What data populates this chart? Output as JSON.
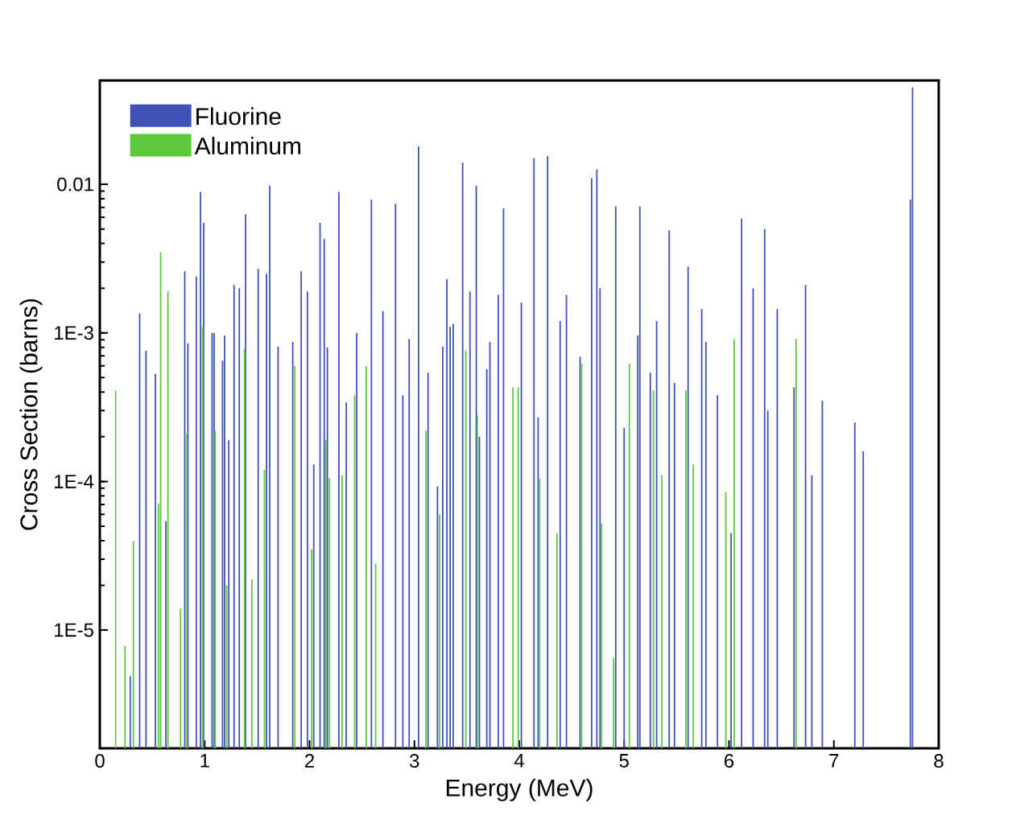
{
  "chart_data": {
    "type": "bar",
    "xlabel": "Energy (MeV)",
    "ylabel": "Cross Section (barns)",
    "log": "y",
    "legend": "top left",
    "grid": false,
    "xlim": [
      0,
      8
    ],
    "xticks": [
      0,
      1,
      2,
      3,
      4,
      5,
      6,
      7,
      8
    ],
    "ylim": [
      1.6e-06,
      0.05
    ],
    "yticks": [
      {
        "value": 1e-05,
        "label": "1E-5"
      },
      {
        "value": 0.0001,
        "label": "1E-4"
      },
      {
        "value": 0.001,
        "label": "1E-3"
      },
      0.01
    ],
    "series": [
      {
        "name": "Fluorine",
        "color": "#3f51b5",
        "x": [
          0.29,
          0.38,
          0.44,
          0.53,
          0.63,
          0.81,
          0.84,
          0.92,
          0.96,
          0.99,
          1.07,
          1.09,
          1.17,
          1.19,
          1.23,
          1.28,
          1.33,
          1.39,
          1.51,
          1.59,
          1.62,
          1.7,
          1.84,
          1.92,
          1.98,
          2.04,
          2.1,
          2.14,
          2.17,
          2.28,
          2.35,
          2.45,
          2.59,
          2.7,
          2.82,
          2.89,
          2.95,
          3.04,
          3.13,
          3.22,
          3.27,
          3.31,
          3.34,
          3.37,
          3.46,
          3.53,
          3.59,
          3.62,
          3.69,
          3.72,
          3.8,
          3.85,
          4.02,
          4.14,
          4.18,
          4.27,
          4.39,
          4.45,
          4.58,
          4.69,
          4.74,
          4.77,
          4.92,
          5.0,
          5.13,
          5.15,
          5.25,
          5.31,
          5.43,
          5.48,
          5.61,
          5.74,
          5.78,
          5.89,
          6.02,
          6.12,
          6.23,
          6.34,
          6.37,
          6.46,
          6.62,
          6.73,
          6.79,
          6.89,
          7.2,
          7.28,
          7.73,
          7.75
        ],
        "values": [
          4.9e-06,
          0.00135,
          0.00076,
          0.00053,
          5.4e-05,
          0.0026,
          0.00085,
          0.0024,
          0.0089,
          0.0055,
          0.001,
          0.001,
          0.00065,
          0.00096,
          0.00019,
          0.0021,
          0.002,
          0.0063,
          0.0027,
          0.0025,
          0.0098,
          0.00081,
          0.00087,
          0.0026,
          0.0019,
          0.00013,
          0.0055,
          0.0043,
          0.0008,
          0.0089,
          0.00034,
          0.001,
          0.0079,
          0.0014,
          0.0074,
          0.00038,
          0.00091,
          0.018,
          0.00054,
          9.3e-05,
          0.00081,
          0.0023,
          0.0011,
          0.00115,
          0.014,
          0.0019,
          0.0098,
          0.0002,
          0.00057,
          0.00087,
          0.0018,
          0.0069,
          0.0016,
          0.015,
          0.00027,
          0.0155,
          0.0012,
          0.0018,
          0.00069,
          0.011,
          0.0126,
          0.002,
          0.0071,
          0.00023,
          0.00096,
          0.0071,
          0.00054,
          0.0012,
          0.0049,
          0.00046,
          0.0028,
          0.00145,
          0.00087,
          0.00038,
          4.5e-05,
          0.0059,
          0.002,
          0.005,
          0.0003,
          0.00145,
          0.00043,
          0.0021,
          0.00011,
          0.00035,
          0.00025,
          0.00016,
          0.0079,
          0.045
        ]
      },
      {
        "name": "Aluminum",
        "color": "#5cc83c",
        "x": [
          0.15,
          0.24,
          0.32,
          0.56,
          0.58,
          0.65,
          0.77,
          0.83,
          0.98,
          1.1,
          1.21,
          1.38,
          1.45,
          1.57,
          1.86,
          2.02,
          2.155,
          2.19,
          2.31,
          2.43,
          2.54,
          2.63,
          3.11,
          3.24,
          3.49,
          3.6,
          3.94,
          3.99,
          4.195,
          4.36,
          4.595,
          4.785,
          4.9,
          5.05,
          5.28,
          5.36,
          5.59,
          5.66,
          5.97,
          6.05,
          6.64
        ],
        "values": [
          0.00041,
          7.8e-06,
          4e-05,
          7.1e-05,
          0.0035,
          0.0019,
          1.4e-05,
          0.00021,
          0.0011,
          0.00022,
          2e-05,
          0.00078,
          2.2e-05,
          0.00012,
          0.0006,
          3.5e-05,
          0.00019,
          0.000105,
          0.00011,
          0.00038,
          0.0006,
          2.8e-05,
          0.00022,
          6e-05,
          0.00076,
          0.00028,
          0.00043,
          0.00043,
          0.000105,
          4.5e-05,
          0.00062,
          5.2e-05,
          6.5e-06,
          0.00062,
          0.00041,
          0.00011,
          0.00041,
          0.00013,
          8.5e-05,
          0.00091,
          0.00091
        ]
      }
    ]
  }
}
